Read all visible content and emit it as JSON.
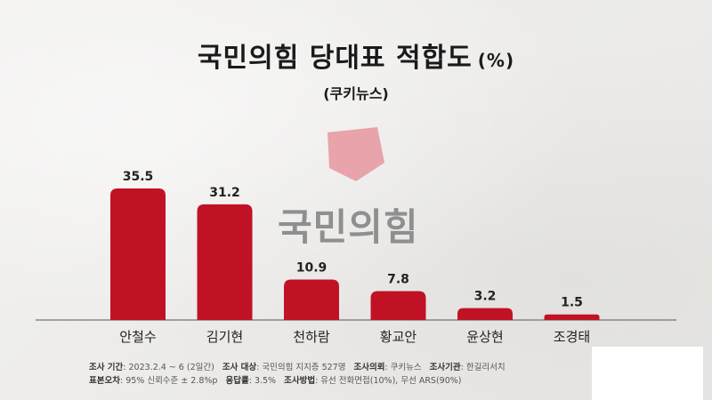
{
  "title": "국민의힘 당대표 적합도",
  "title_unit": "(%)",
  "subtitle": "(쿠키뉴스)",
  "watermark": "국민의힘",
  "colors": {
    "bar": "#c11225",
    "logo": "#e8a3ab"
  },
  "chart_data": {
    "type": "bar",
    "title": "국민의힘 당대표 적합도",
    "categories": [
      "안철수",
      "김기현",
      "천하람",
      "황교안",
      "윤상현",
      "조경태"
    ],
    "values": [
      35.5,
      31.2,
      10.9,
      7.8,
      3.2,
      1.5
    ],
    "value_labels": [
      "35.5",
      "31.2",
      "10.9",
      "7.8",
      "3.2",
      "1.5"
    ],
    "xlabel": "",
    "ylabel": "",
    "ylim": [
      0,
      35.5
    ],
    "grid": false,
    "legend": "none"
  },
  "footer": {
    "survey_period_label": "조사 기간",
    "survey_period_value": ": 2023.2.4 ~ 6 (2일간)",
    "survey_target_label": "조사 대상",
    "survey_target_value": ": 국민의힘 지지층 527명",
    "client_label": "조사의뢰",
    "client_value": ": 쿠키뉴스",
    "agency_label": "조사기관",
    "agency_value": ": 한길리서치",
    "error_label": "표본오차",
    "error_value": ": 95% 신뢰수준 ± 2.8%p",
    "response_label": "응답률",
    "response_value": ": 3.5%",
    "method_label": "조사방법",
    "method_value": ": 유선 전화면접(10%), 무선 ARS(90%)"
  }
}
